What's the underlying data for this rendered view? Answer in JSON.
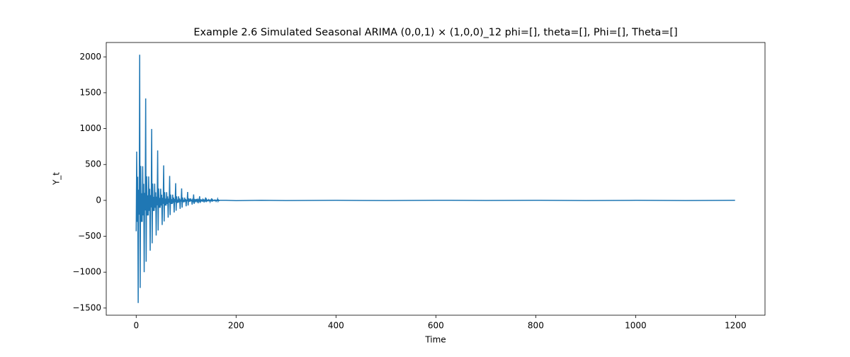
{
  "chart_data": {
    "type": "line",
    "title": "Example 2.6 Simulated Seasonal ARIMA (0,0,1) × (1,0,0)_12 phi=[], theta=[], Phi=[], Theta=[]",
    "x_label": "Time",
    "y_label": "Y_t",
    "x": [
      0,
      1,
      2,
      3,
      4,
      5,
      6,
      7,
      8,
      9,
      10,
      11,
      12,
      13,
      14,
      15,
      16,
      17,
      18,
      19,
      20,
      21,
      22,
      23,
      24,
      25,
      26,
      27,
      28,
      29,
      30,
      31,
      32,
      33,
      34,
      35,
      36,
      37,
      38,
      39,
      40,
      41,
      42,
      43,
      44,
      45,
      46,
      47,
      48,
      49,
      50,
      51,
      52,
      53,
      54,
      55,
      56,
      57,
      58,
      59,
      60,
      61,
      62,
      63,
      64,
      65,
      66,
      67,
      68,
      69,
      70,
      71,
      72,
      73,
      74,
      75,
      76,
      77,
      78,
      79,
      80,
      81,
      82,
      83,
      84,
      85,
      86,
      87,
      88,
      89,
      90,
      91,
      92,
      93,
      94,
      95,
      96,
      97,
      98,
      99,
      100,
      101,
      102,
      103,
      104,
      105,
      106,
      107,
      108,
      109,
      110,
      111,
      112,
      113,
      114,
      115,
      116,
      117,
      118,
      119,
      120,
      121,
      122,
      123,
      124,
      125,
      126,
      127,
      128,
      129,
      130,
      131,
      132,
      133,
      134,
      135,
      136,
      137,
      138,
      139,
      140,
      141,
      142,
      143,
      144,
      145,
      146,
      147,
      148,
      149,
      150,
      151,
      152,
      153,
      154,
      155,
      156,
      157,
      158,
      159,
      160,
      161,
      162,
      163,
      164,
      165,
      166,
      167,
      180,
      200,
      250,
      300,
      400,
      500,
      600,
      700,
      800,
      900,
      1000,
      1100,
      1199
    ],
    "series": [
      {
        "color": "#1f77b4",
        "values": [
          -430,
          680,
          -300,
          330,
          -1430,
          150,
          -200,
          2030,
          -1220,
          480,
          -300,
          100,
          -300,
          476,
          -210,
          231,
          -1000,
          105,
          -140,
          1420,
          -855,
          336,
          -210,
          70,
          -210,
          333,
          -147,
          162,
          -700,
          74,
          -98,
          994,
          -598,
          235,
          -147,
          49,
          -147,
          233,
          -103,
          113,
          -490,
          52,
          -69,
          696,
          -419,
          165,
          -103,
          34,
          -103,
          163,
          -72,
          79,
          -343,
          36,
          -48,
          487,
          -293,
          115,
          -72,
          24,
          -72,
          114,
          -50,
          55,
          -240,
          25,
          -34,
          341,
          -205,
          81,
          -50,
          17,
          -50,
          80,
          -35,
          39,
          -168,
          18,
          -24,
          239,
          -144,
          57,
          -35,
          12,
          -35,
          56,
          -25,
          27,
          -118,
          12,
          -17,
          167,
          -101,
          40,
          -25,
          8,
          -25,
          39,
          -17,
          19,
          -82,
          9,
          -12,
          117,
          -71,
          28,
          -17,
          6,
          -17,
          27,
          -12,
          13,
          -58,
          6,
          -8,
          82,
          -49,
          19,
          -12,
          4,
          -12,
          19,
          -8,
          9,
          -40,
          4,
          -6,
          57,
          -35,
          14,
          -8,
          3,
          -8,
          13,
          -6,
          6,
          -28,
          3,
          -4,
          40,
          -24,
          10,
          -6,
          2,
          -6,
          9,
          -4,
          4,
          -20,
          2,
          -3,
          28,
          -17,
          7,
          -4,
          1,
          -4,
          6,
          -3,
          3,
          -14,
          1,
          -2,
          20,
          -12,
          5,
          -3,
          1,
          2,
          -3,
          2,
          -2,
          1,
          -2,
          2,
          -1,
          2,
          -2,
          1,
          -2,
          1
        ]
      }
    ],
    "xlim": [
      -59.95,
      1258.95
    ],
    "ylim": [
      -1600,
      2200
    ],
    "xticks": [
      0,
      200,
      400,
      600,
      800,
      1000,
      1200
    ],
    "yticks": [
      {
        "value": -1500,
        "label": "−1500"
      },
      {
        "value": -1000,
        "label": "−1000"
      },
      {
        "value": -500,
        "label": "−500"
      },
      0,
      500,
      1000,
      1500,
      2000
    ]
  }
}
